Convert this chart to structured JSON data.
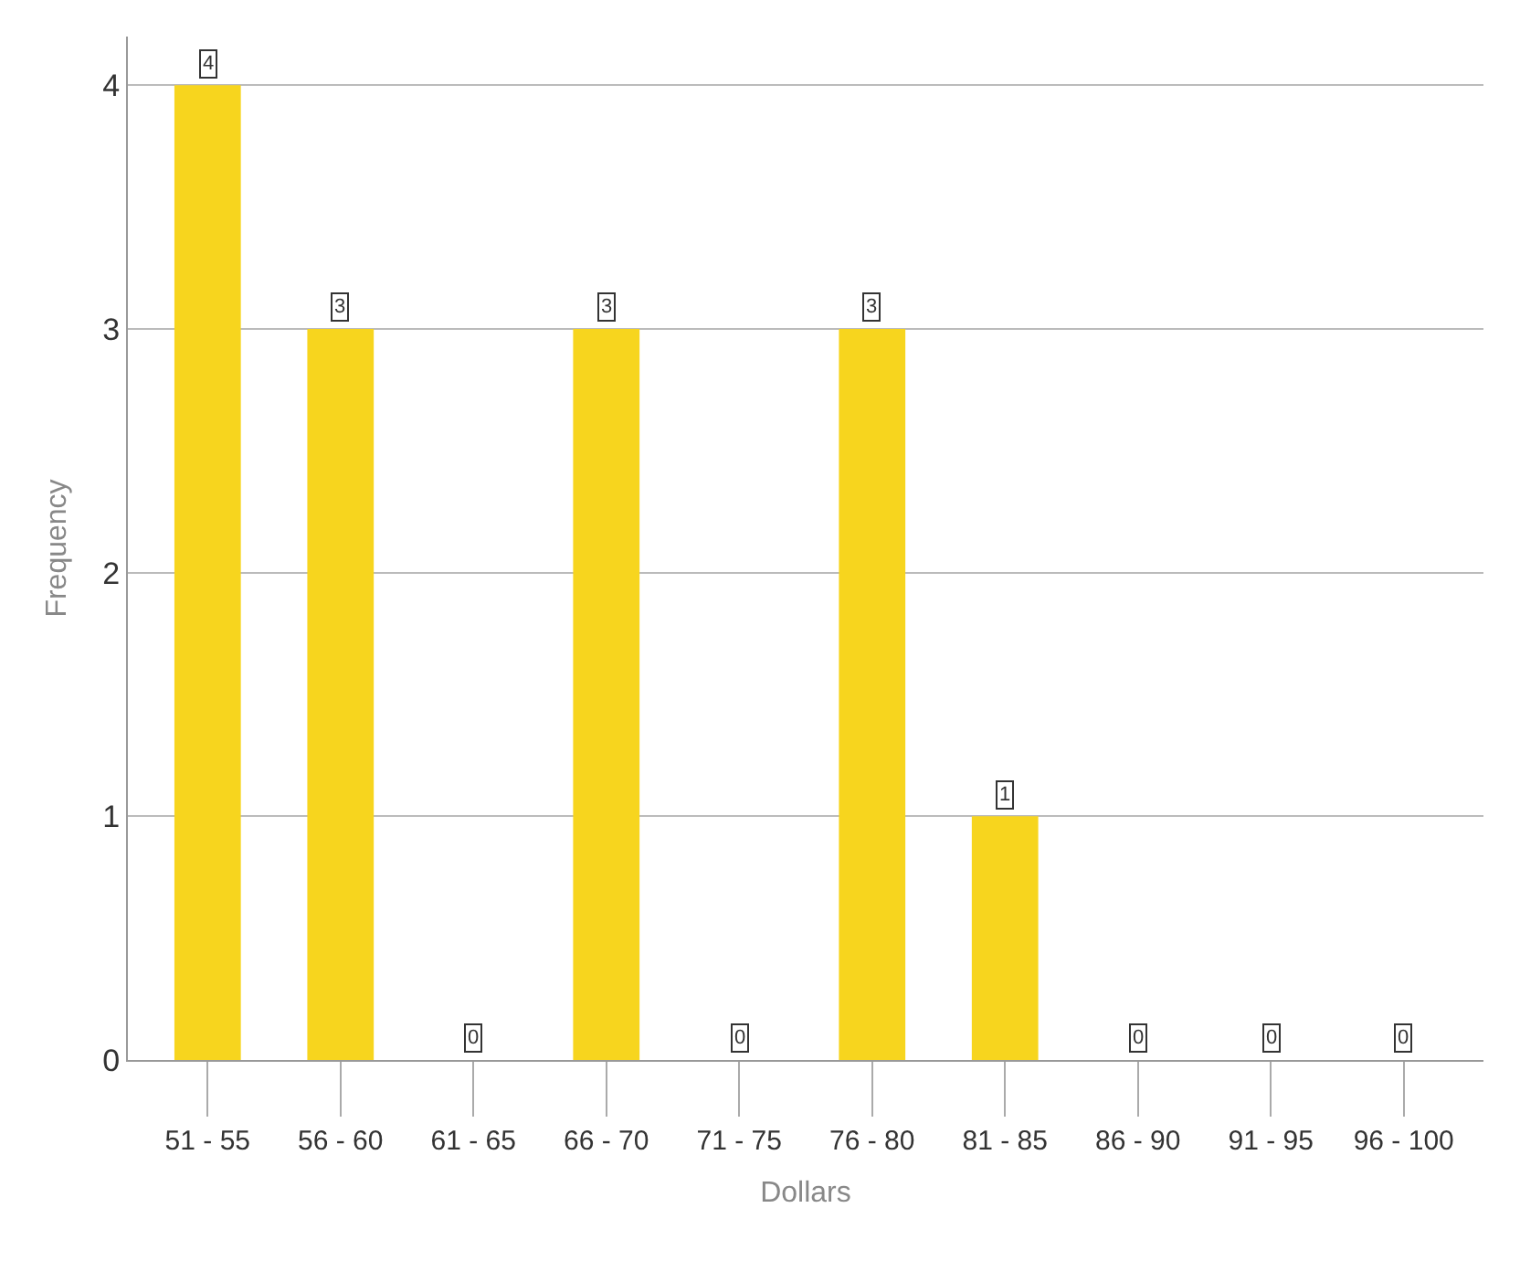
{
  "chart_data": {
    "type": "bar",
    "xlabel": "Dollars",
    "ylabel": "Frequency",
    "categories": [
      "51 - 55",
      "56 - 60",
      "61 - 65",
      "66 - 70",
      "71 - 75",
      "76 - 80",
      "81 - 85",
      "86 - 90",
      "91 - 95",
      "96 - 100"
    ],
    "values": [
      4,
      3,
      0,
      3,
      0,
      3,
      1,
      0,
      0,
      0
    ],
    "color": "#f7d51e",
    "ylim": [
      0,
      4.2
    ],
    "yticks": [
      0,
      1,
      2,
      3,
      4
    ],
    "grid": "y",
    "data_labels": true
  }
}
